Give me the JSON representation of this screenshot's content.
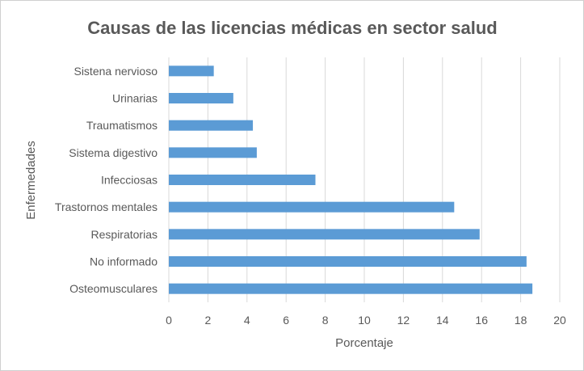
{
  "chart_data": {
    "type": "bar",
    "orientation": "horizontal",
    "title": "Causas de las licencias médicas en sector salud",
    "xlabel": "Porcentaje",
    "ylabel": "Enfermedades",
    "categories": [
      "Osteomusculares",
      "No informado",
      "Respiratorias",
      "Trastornos mentales",
      "Infecciosas",
      "Sistema digestivo",
      "Traumatismos",
      "Urinarias",
      "Sistena nervioso"
    ],
    "values": [
      18.6,
      18.3,
      15.9,
      14.6,
      7.5,
      4.5,
      4.3,
      3.3,
      2.3
    ],
    "xlim": [
      0,
      20
    ],
    "xticks": [
      "0",
      "2",
      "4",
      "6",
      "8",
      "10",
      "12",
      "14",
      "16",
      "18",
      "20"
    ],
    "grid": true,
    "legend": "none",
    "bar_color": "#5b9bd5",
    "grid_color": "#d9d9d9"
  }
}
